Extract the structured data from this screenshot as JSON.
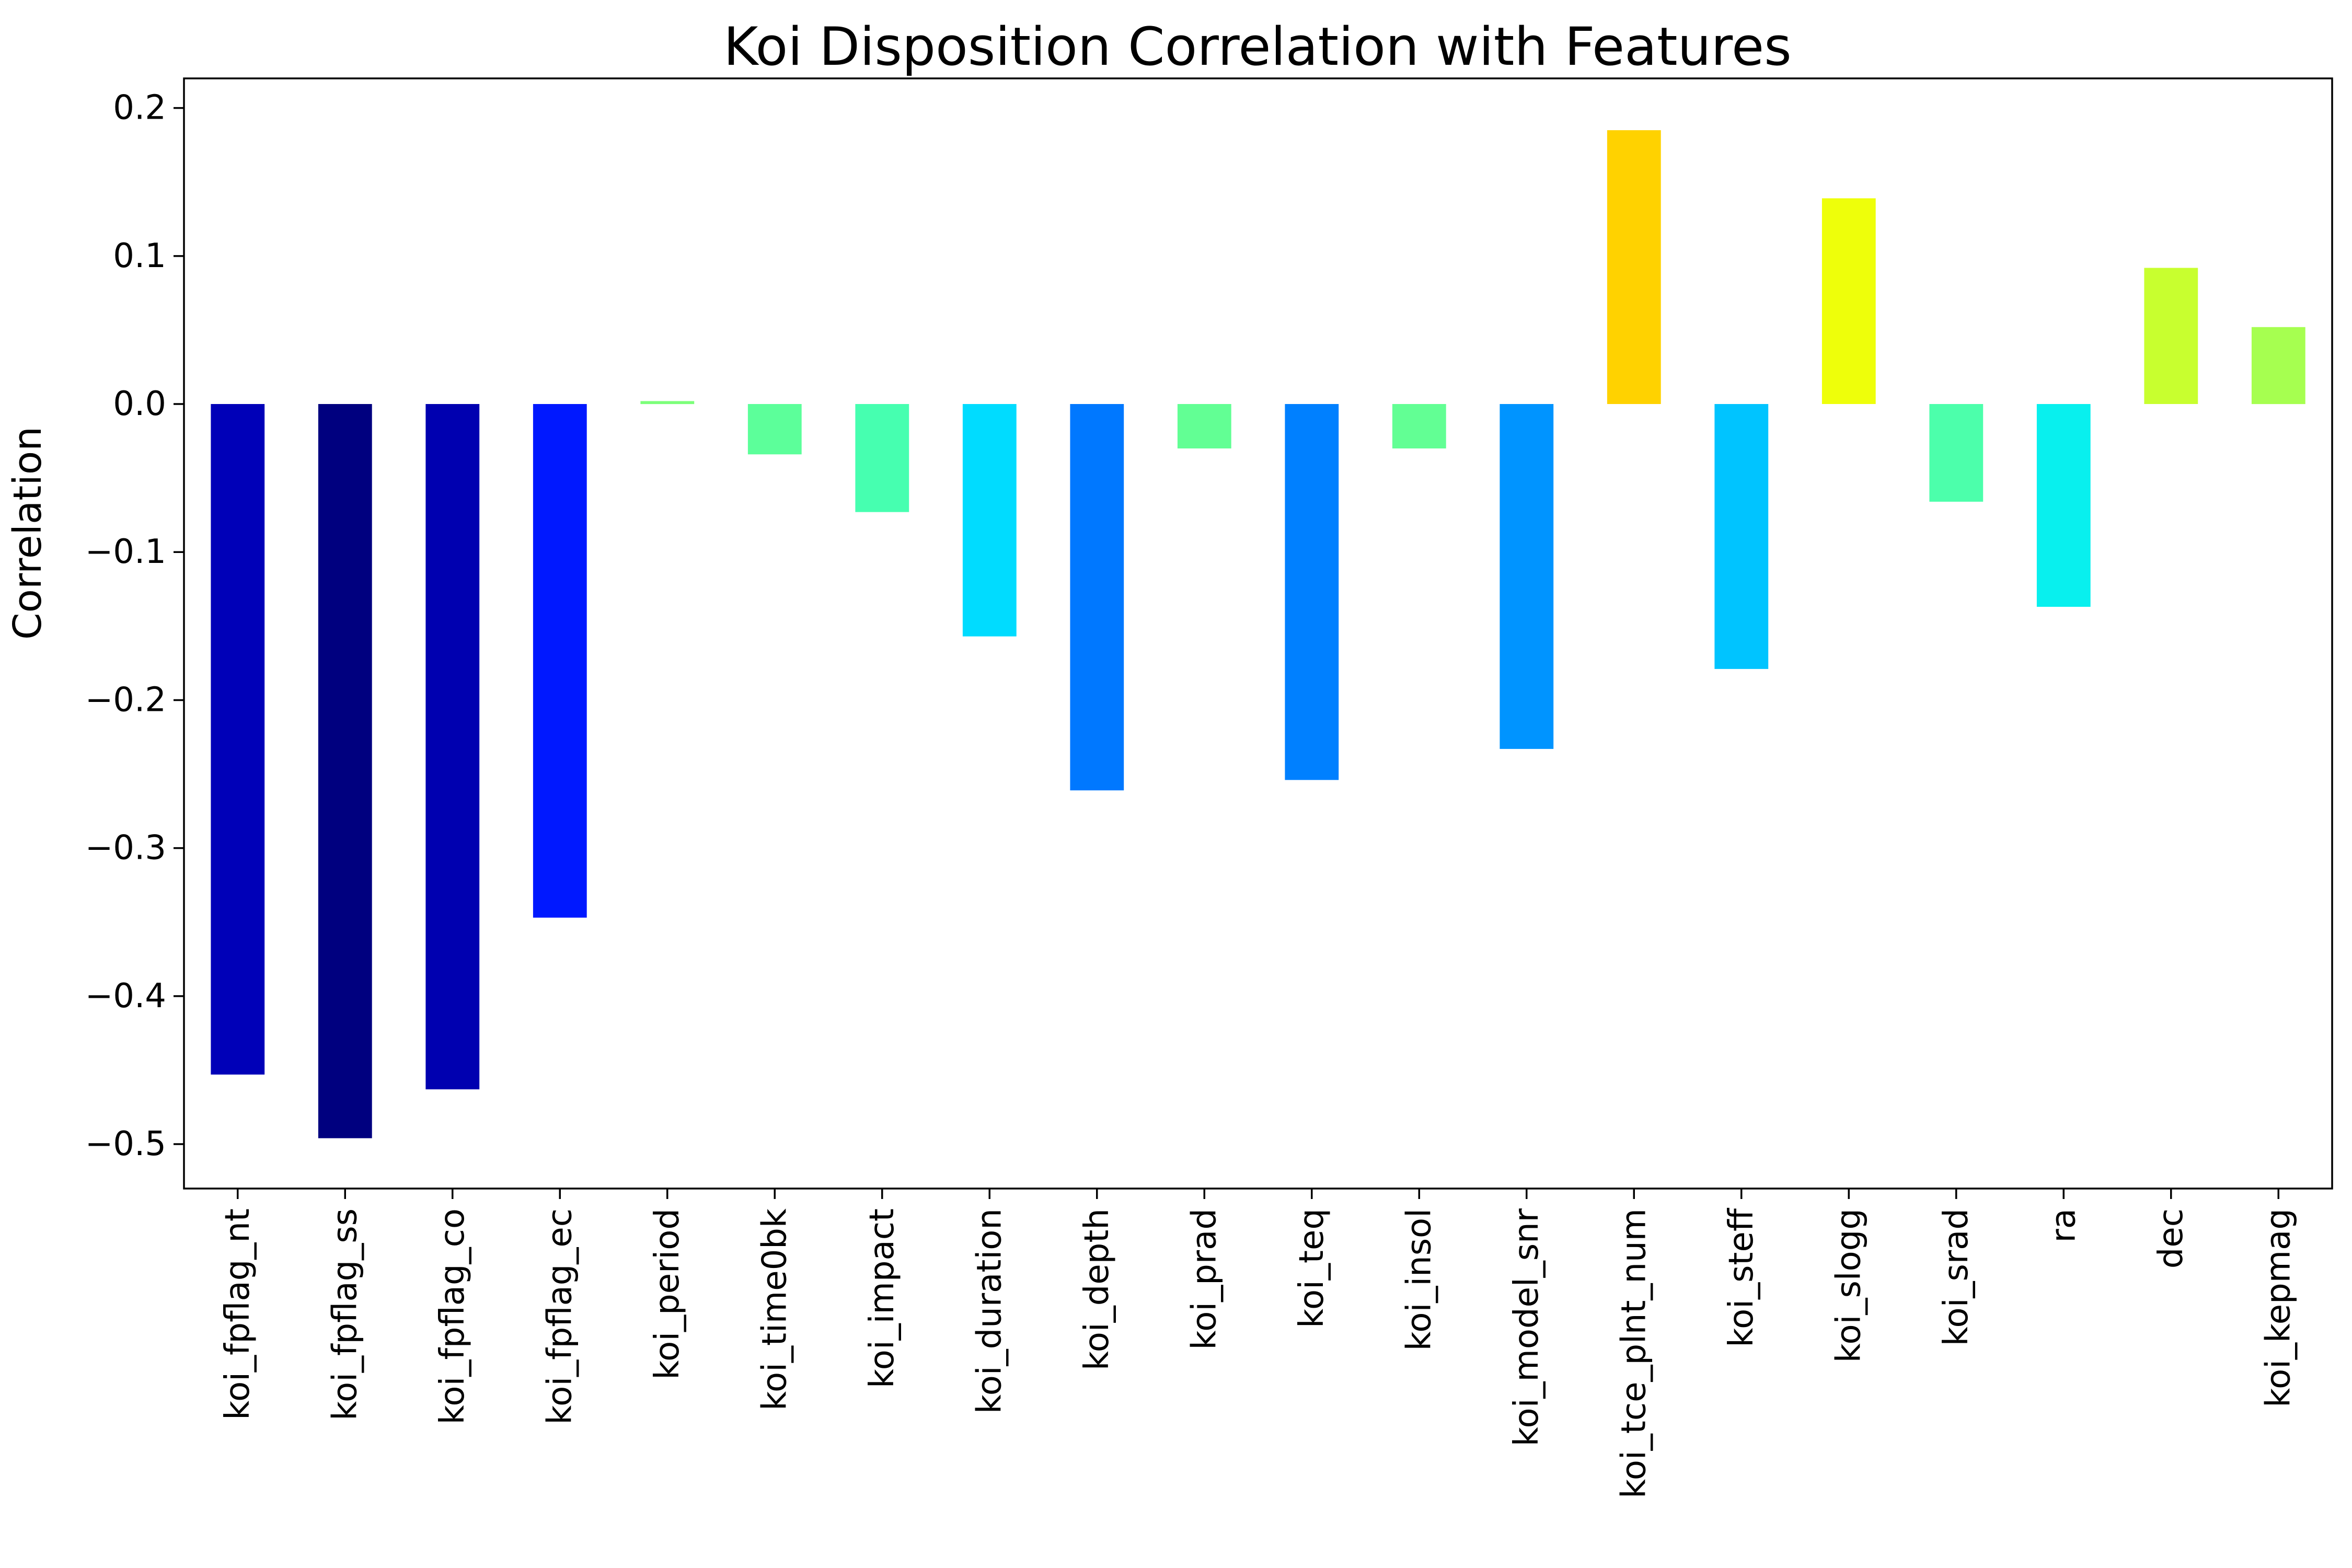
{
  "chart_data": {
    "type": "bar",
    "title": "Koi Disposition Correlation with Features",
    "xlabel": "",
    "ylabel": "Correlation",
    "ylim": [
      -0.53,
      0.22
    ],
    "yticks": [
      0.2,
      0.1,
      0.0,
      -0.1,
      -0.2,
      -0.3,
      -0.4,
      -0.5
    ],
    "ytick_labels": [
      "0.2",
      "0.1",
      "0.0",
      "−0.1",
      "−0.2",
      "−0.3",
      "−0.4",
      "−0.5"
    ],
    "grid": false,
    "legend": "none",
    "categories": [
      "koi_fpflag_nt",
      "koi_fpflag_ss",
      "koi_fpflag_co",
      "koi_fpflag_ec",
      "koi_period",
      "koi_time0bk",
      "koi_impact",
      "koi_duration",
      "koi_depth",
      "koi_prad",
      "koi_teq",
      "koi_insol",
      "koi_model_snr",
      "koi_tce_plnt_num",
      "koi_steff",
      "koi_slogg",
      "koi_srad",
      "ra",
      "dec",
      "koi_kepmag"
    ],
    "values": [
      -0.453,
      -0.496,
      -0.463,
      -0.347,
      0.002,
      -0.034,
      -0.073,
      -0.157,
      -0.261,
      -0.03,
      -0.254,
      -0.03,
      -0.233,
      0.185,
      -0.179,
      0.139,
      -0.066,
      -0.137,
      0.092,
      0.052
    ],
    "colors": [
      "#0000b8",
      "#00007f",
      "#0000b0",
      "#0018ff",
      "#7cff7a",
      "#5cff9a",
      "#46ffb0",
      "#00dcff",
      "#0078ff",
      "#62ff94",
      "#0080ff",
      "#62ff94",
      "#0094ff",
      "#ffd200",
      "#00c4ff",
      "#eeff0a",
      "#4cffab",
      "#08f0ee",
      "#c8ff2f",
      "#a6ff50"
    ]
  }
}
